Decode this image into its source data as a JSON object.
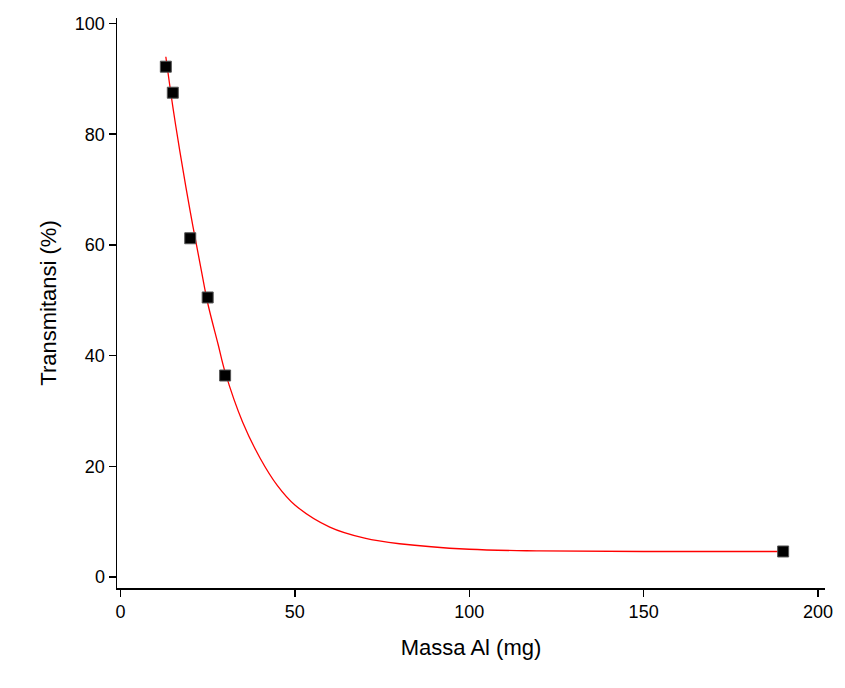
{
  "chart_data": {
    "type": "scatter",
    "x_label": "Massa Al (mg)",
    "y_label": "Transmitansi (%)",
    "xlim": [
      -1,
      202
    ],
    "ylim": [
      -2,
      101
    ],
    "xticks": [
      0,
      50,
      100,
      150,
      200
    ],
    "yticks": [
      0,
      20,
      40,
      60,
      80,
      100
    ],
    "grid": false,
    "series": [
      {
        "type": "scatter",
        "marker": "square",
        "color": "#000000",
        "x": [
          13,
          15,
          20,
          25,
          30,
          190
        ],
        "values": [
          92.2,
          87.5,
          61.2,
          50.5,
          36.4,
          4.6
        ]
      },
      {
        "type": "line",
        "line_style": "solid",
        "color": "#ff0000",
        "x": [
          13,
          15,
          17,
          20,
          23,
          25,
          28,
          30,
          35,
          40,
          45,
          50,
          60,
          70,
          80,
          100,
          120,
          150,
          190
        ],
        "values": [
          94,
          85,
          77,
          66,
          56,
          49.5,
          42,
          37,
          28,
          21.5,
          16.5,
          13,
          9,
          7,
          6,
          5,
          4.7,
          4.6,
          4.6
        ]
      }
    ]
  }
}
